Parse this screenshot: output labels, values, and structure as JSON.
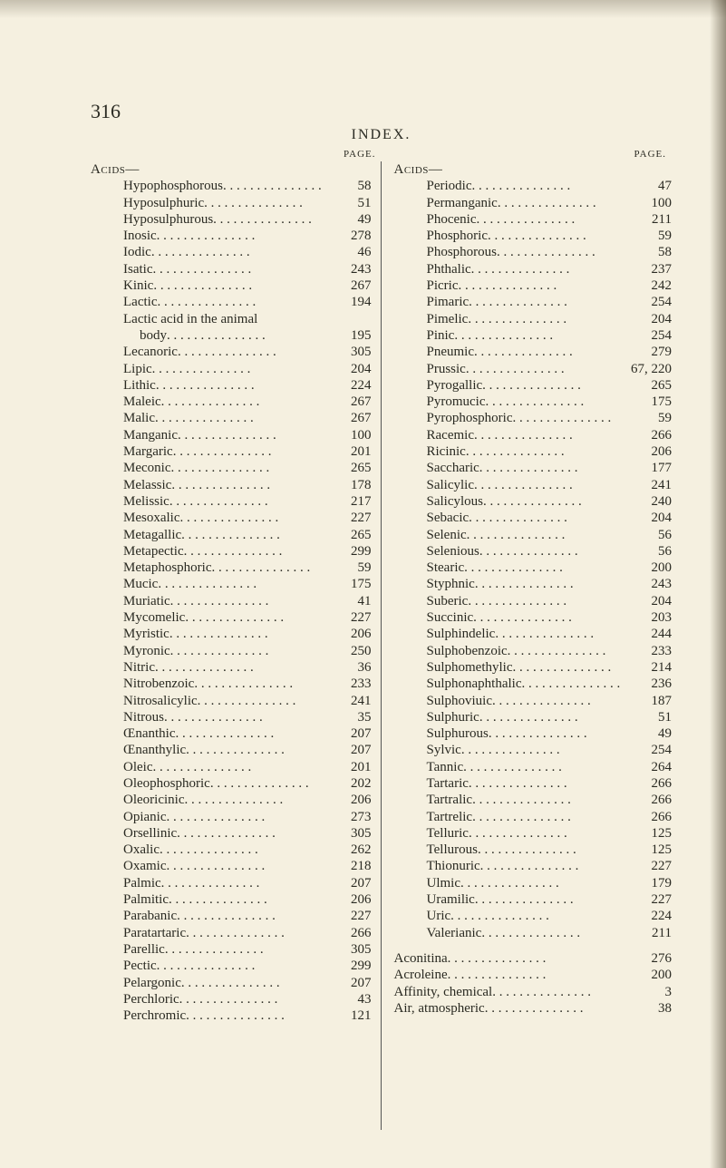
{
  "page_number": "316",
  "running_head": "INDEX.",
  "col_heading": "PAGE.",
  "left_section_head": "Acids—",
  "right_section_head": "Acids—",
  "left_entries": [
    {
      "label": "Hypophosphorous",
      "page": "58"
    },
    {
      "label": "Hyposulphuric",
      "page": "51"
    },
    {
      "label": "Hyposulphurous",
      "page": "49"
    },
    {
      "label": "Inosic",
      "page": "278"
    },
    {
      "label": "Iodic",
      "page": "46"
    },
    {
      "label": "Isatic",
      "page": "243"
    },
    {
      "label": "Kinic",
      "page": "267"
    },
    {
      "label": "Lactic",
      "page": "194"
    },
    {
      "label": "Lactic acid in the animal",
      "page": ""
    },
    {
      "label": "body",
      "page": "195",
      "lev": 2
    },
    {
      "label": "Lecanoric",
      "page": "305"
    },
    {
      "label": "Lipic",
      "page": "204"
    },
    {
      "label": "Lithic",
      "page": "224"
    },
    {
      "label": "Maleic",
      "page": "267"
    },
    {
      "label": "Malic",
      "page": "267"
    },
    {
      "label": "Manganic",
      "page": "100"
    },
    {
      "label": "Margaric",
      "page": "201"
    },
    {
      "label": "Meconic",
      "page": "265"
    },
    {
      "label": "Melassic",
      "page": "178"
    },
    {
      "label": "Melissic",
      "page": "217"
    },
    {
      "label": "Mesoxalic",
      "page": "227"
    },
    {
      "label": "Metagallic",
      "page": "265"
    },
    {
      "label": "Metapectic",
      "page": "299"
    },
    {
      "label": "Metaphosphoric",
      "page": "59"
    },
    {
      "label": "Mucic",
      "page": "175"
    },
    {
      "label": "Muriatic",
      "page": "41"
    },
    {
      "label": "Mycomelic",
      "page": "227"
    },
    {
      "label": "Myristic",
      "page": "206"
    },
    {
      "label": "Myronic",
      "page": "250"
    },
    {
      "label": "Nitric",
      "page": "36"
    },
    {
      "label": "Nitrobenzoic",
      "page": "233"
    },
    {
      "label": "Nitrosalicylic",
      "page": "241"
    },
    {
      "label": "Nitrous",
      "page": "35"
    },
    {
      "label": "Œnanthic",
      "page": "207"
    },
    {
      "label": "Œnanthylic",
      "page": "207"
    },
    {
      "label": "Oleic",
      "page": "201"
    },
    {
      "label": "Oleophosphoric",
      "page": "202"
    },
    {
      "label": "Oleoricinic",
      "page": "206"
    },
    {
      "label": "Opianic",
      "page": "273"
    },
    {
      "label": "Orsellinic",
      "page": "305"
    },
    {
      "label": "Oxalic",
      "page": "262"
    },
    {
      "label": "Oxamic",
      "page": "218"
    },
    {
      "label": "Palmic",
      "page": "207"
    },
    {
      "label": "Palmitic",
      "page": "206"
    },
    {
      "label": "Parabanic",
      "page": "227"
    },
    {
      "label": "Paratartaric",
      "page": "266"
    },
    {
      "label": "Parellic",
      "page": "305"
    },
    {
      "label": "Pectic",
      "page": "299"
    },
    {
      "label": "Pelargonic",
      "page": "207"
    },
    {
      "label": "Perchloric",
      "page": "43"
    },
    {
      "label": "Perchromic",
      "page": "121"
    }
  ],
  "right_entries": [
    {
      "label": "Periodic",
      "page": "47"
    },
    {
      "label": "Permanganic",
      "page": "100"
    },
    {
      "label": "Phocenic",
      "page": "211"
    },
    {
      "label": "Phosphoric",
      "page": "59"
    },
    {
      "label": "Phosphorous",
      "page": "58"
    },
    {
      "label": "Phthalic",
      "page": "237"
    },
    {
      "label": "Picric",
      "page": "242"
    },
    {
      "label": "Pimaric",
      "page": "254"
    },
    {
      "label": "Pimelic",
      "page": "204"
    },
    {
      "label": "Pinic",
      "page": "254"
    },
    {
      "label": "Pneumic",
      "page": "279"
    },
    {
      "label": "Prussic",
      "page": "67, 220"
    },
    {
      "label": "Pyrogallic",
      "page": "265"
    },
    {
      "label": "Pyromucic",
      "page": "175"
    },
    {
      "label": "Pyrophosphoric",
      "page": "59"
    },
    {
      "label": "Racemic",
      "page": "266"
    },
    {
      "label": "Ricinic",
      "page": "206"
    },
    {
      "label": "Saccharic",
      "page": "177"
    },
    {
      "label": "Salicylic",
      "page": "241"
    },
    {
      "label": "Salicylous",
      "page": "240"
    },
    {
      "label": "Sebacic",
      "page": "204"
    },
    {
      "label": "Selenic",
      "page": "56"
    },
    {
      "label": "Selenious",
      "page": "56"
    },
    {
      "label": "Stearic",
      "page": "200"
    },
    {
      "label": "Styphnic",
      "page": "243"
    },
    {
      "label": "Suberic",
      "page": "204"
    },
    {
      "label": "Succinic",
      "page": "203"
    },
    {
      "label": "Sulphindelic",
      "page": "244"
    },
    {
      "label": "Sulphobenzoic",
      "page": "233"
    },
    {
      "label": "Sulphomethylic",
      "page": "214"
    },
    {
      "label": "Sulphonaphthalic",
      "page": "236"
    },
    {
      "label": "Sulphoviuic",
      "page": "187"
    },
    {
      "label": "Sulphuric",
      "page": "51"
    },
    {
      "label": "Sulphurous",
      "page": "49"
    },
    {
      "label": "Sylvic",
      "page": "254"
    },
    {
      "label": "Tannic",
      "page": "264"
    },
    {
      "label": "Tartaric",
      "page": "266"
    },
    {
      "label": "Tartralic",
      "page": "266"
    },
    {
      "label": "Tartrelic",
      "page": "266"
    },
    {
      "label": "Telluric",
      "page": "125"
    },
    {
      "label": "Tellurous",
      "page": "125"
    },
    {
      "label": "Thionuric",
      "page": "227"
    },
    {
      "label": "Ulmic",
      "page": "179"
    },
    {
      "label": "Uramilic",
      "page": "227"
    },
    {
      "label": "Uric",
      "page": "224"
    },
    {
      "label": "Valerianic",
      "page": "211"
    }
  ],
  "right_extra": [
    {
      "label": "Aconitina",
      "page": "276"
    },
    {
      "label": "Acroleine",
      "page": "200"
    },
    {
      "label": "Affinity, chemical",
      "page": "3"
    },
    {
      "label": "Air, atmospheric",
      "page": "38"
    }
  ]
}
